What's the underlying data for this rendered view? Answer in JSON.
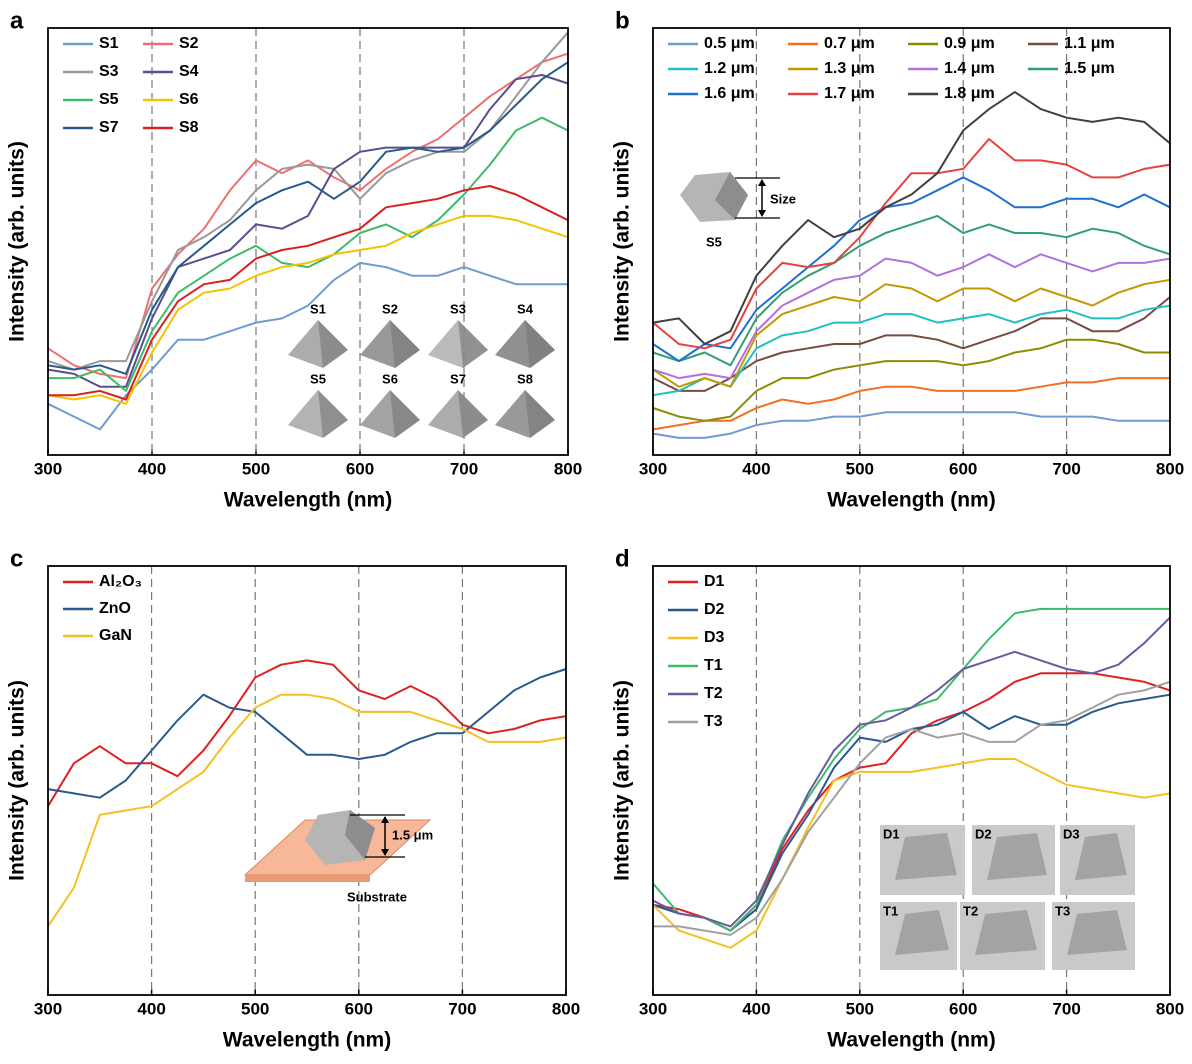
{
  "chart_data": [
    {
      "type": "line",
      "panel": "a",
      "xlabel": "Wavelength (nm)",
      "ylabel": "Intensity (arb. units)",
      "x": [
        300,
        325,
        350,
        375,
        400,
        425,
        450,
        475,
        500,
        525,
        550,
        575,
        600,
        625,
        650,
        675,
        700,
        725,
        750,
        775,
        800
      ],
      "xlim": [
        300,
        800
      ],
      "xticks": [
        300,
        400,
        500,
        600,
        700,
        800
      ],
      "ylim": [
        0,
        100
      ],
      "grid": true,
      "legend": "upper left",
      "legend_columns": 2,
      "series": [
        {
          "name": "S1",
          "color": "#6e9bd0",
          "values": [
            12,
            9,
            6,
            14,
            20,
            27,
            27,
            29,
            31,
            32,
            35,
            41,
            45,
            44,
            42,
            42,
            44,
            42,
            40,
            40,
            40
          ]
        },
        {
          "name": "S2",
          "color": "#f07070",
          "values": [
            25,
            21,
            19,
            18,
            39,
            47,
            53,
            62,
            69,
            66,
            69,
            65,
            62,
            67,
            71,
            74,
            79,
            84,
            88,
            92,
            94
          ]
        },
        {
          "name": "S3",
          "color": "#999999",
          "values": [
            22,
            20,
            22,
            22,
            36,
            48,
            51,
            55,
            62,
            67,
            68,
            67,
            60,
            66,
            69,
            71,
            71,
            76,
            84,
            92,
            99
          ]
        },
        {
          "name": "S4",
          "color": "#5a4e8c",
          "values": [
            20,
            19,
            16,
            16,
            32,
            44,
            46,
            48,
            54,
            53,
            56,
            67,
            71,
            72,
            72,
            72,
            72,
            81,
            88,
            89,
            87
          ]
        },
        {
          "name": "S5",
          "color": "#3dbb6a",
          "values": [
            18,
            18,
            20,
            15,
            29,
            38,
            42,
            46,
            49,
            45,
            44,
            47,
            52,
            54,
            51,
            55,
            61,
            68,
            76,
            79,
            76
          ]
        },
        {
          "name": "S6",
          "color": "#f5c200",
          "values": [
            14,
            13,
            14,
            12,
            24,
            34,
            38,
            39,
            42,
            44,
            45,
            47,
            48,
            49,
            52,
            54,
            56,
            56,
            55,
            53,
            51
          ]
        },
        {
          "name": "S7",
          "color": "#2a5a8c",
          "values": [
            21,
            20,
            21,
            19,
            34,
            44,
            49,
            54,
            59,
            62,
            64,
            60,
            64,
            71,
            72,
            71,
            72,
            76,
            82,
            88,
            92
          ]
        },
        {
          "name": "S8",
          "color": "#d92020",
          "values": [
            14,
            14,
            15,
            13,
            27,
            36,
            40,
            41,
            46,
            48,
            49,
            51,
            53,
            58,
            59,
            60,
            62,
            63,
            61,
            58,
            55
          ]
        }
      ],
      "inset_labels": [
        "S1",
        "S2",
        "S3",
        "S4",
        "S5",
        "S6",
        "S7",
        "S8"
      ]
    },
    {
      "type": "line",
      "panel": "b",
      "xlabel": "Wavelength (nm)",
      "ylabel": "Intensity (arb. units)",
      "x": [
        300,
        325,
        350,
        375,
        400,
        425,
        450,
        475,
        500,
        525,
        550,
        575,
        600,
        625,
        650,
        675,
        700,
        725,
        750,
        775,
        800
      ],
      "xlim": [
        300,
        800
      ],
      "xticks": [
        300,
        400,
        500,
        600,
        700,
        800
      ],
      "ylim": [
        0,
        100
      ],
      "grid": true,
      "legend": "upper left",
      "legend_columns": 4,
      "series": [
        {
          "name": "0.5 μm",
          "color": "#6e9bd0",
          "values": [
            5,
            4,
            4,
            5,
            7,
            8,
            8,
            9,
            9,
            10,
            10,
            10,
            10,
            10,
            10,
            9,
            9,
            9,
            8,
            8,
            8
          ]
        },
        {
          "name": "0.7 μm",
          "color": "#f07020",
          "values": [
            6,
            7,
            8,
            8,
            11,
            13,
            12,
            13,
            15,
            16,
            16,
            15,
            15,
            15,
            15,
            16,
            17,
            17,
            18,
            18,
            18
          ]
        },
        {
          "name": "0.9 μm",
          "color": "#8c8c00",
          "values": [
            11,
            9,
            8,
            9,
            15,
            18,
            18,
            20,
            21,
            22,
            22,
            22,
            21,
            22,
            24,
            25,
            27,
            27,
            26,
            24,
            24
          ]
        },
        {
          "name": "1.1 μm",
          "color": "#7a4a40",
          "values": [
            18,
            15,
            15,
            18,
            22,
            24,
            25,
            26,
            26,
            28,
            28,
            27,
            25,
            27,
            29,
            32,
            32,
            29,
            29,
            32,
            37
          ]
        },
        {
          "name": "1.2 μm",
          "color": "#20c0c0",
          "values": [
            14,
            15,
            18,
            16,
            25,
            28,
            29,
            31,
            31,
            33,
            33,
            31,
            32,
            33,
            31,
            33,
            34,
            32,
            32,
            34,
            35
          ]
        },
        {
          "name": "1.3 μm",
          "color": "#c09a00",
          "values": [
            20,
            16,
            18,
            16,
            28,
            33,
            35,
            37,
            36,
            40,
            39,
            36,
            39,
            39,
            36,
            39,
            37,
            35,
            38,
            40,
            41
          ]
        },
        {
          "name": "1.4 μm",
          "color": "#b070e0",
          "values": [
            20,
            18,
            19,
            18,
            29,
            35,
            38,
            41,
            42,
            46,
            45,
            42,
            44,
            47,
            44,
            47,
            45,
            43,
            45,
            45,
            46
          ]
        },
        {
          "name": "1.5 μm",
          "color": "#30a070",
          "values": [
            24,
            22,
            24,
            21,
            32,
            38,
            42,
            45,
            49,
            52,
            54,
            56,
            52,
            54,
            52,
            52,
            51,
            53,
            52,
            49,
            47
          ]
        },
        {
          "name": "1.6 μm",
          "color": "#1f6fd0",
          "values": [
            26,
            22,
            26,
            25,
            34,
            39,
            44,
            49,
            55,
            58,
            59,
            62,
            65,
            62,
            58,
            58,
            60,
            60,
            58,
            61,
            58
          ]
        },
        {
          "name": "1.7 μm",
          "color": "#e84040",
          "values": [
            31,
            26,
            25,
            27,
            39,
            45,
            44,
            45,
            51,
            59,
            66,
            66,
            67,
            74,
            69,
            69,
            68,
            65,
            65,
            67,
            68
          ]
        },
        {
          "name": "1.8 μm",
          "color": "#404040",
          "values": [
            31,
            32,
            26,
            29,
            42,
            49,
            55,
            51,
            53,
            58,
            61,
            66,
            76,
            81,
            85,
            81,
            79,
            78,
            79,
            78,
            73
          ]
        }
      ],
      "inset_labels": [
        "Size",
        "S5"
      ]
    },
    {
      "type": "line",
      "panel": "c",
      "xlabel": "Wavelength (nm)",
      "ylabel": "Intensity (arb. units)",
      "x": [
        300,
        325,
        350,
        375,
        400,
        425,
        450,
        475,
        500,
        525,
        550,
        575,
        600,
        625,
        650,
        675,
        700,
        725,
        750,
        775,
        800
      ],
      "xlim": [
        300,
        800
      ],
      "xticks": [
        300,
        400,
        500,
        600,
        700,
        800
      ],
      "ylim": [
        0,
        100
      ],
      "grid": true,
      "legend": "upper left",
      "legend_columns": 1,
      "series": [
        {
          "name": "Al₂O₃",
          "color": "#e02020",
          "values": [
            44,
            54,
            58,
            54,
            54,
            51,
            57,
            65,
            74,
            77,
            78,
            77,
            71,
            69,
            72,
            69,
            63,
            61,
            62,
            64,
            65
          ]
        },
        {
          "name": "ZnO",
          "color": "#2a5a8c",
          "values": [
            48,
            47,
            46,
            50,
            57,
            64,
            70,
            67,
            66,
            61,
            56,
            56,
            55,
            56,
            59,
            61,
            61,
            66,
            71,
            74,
            76
          ]
        },
        {
          "name": "GaN",
          "color": "#f5c020",
          "values": [
            16,
            25,
            42,
            43,
            44,
            48,
            52,
            60,
            67,
            70,
            70,
            69,
            66,
            66,
            66,
            64,
            62,
            59,
            59,
            59,
            60
          ]
        }
      ],
      "inset_labels": [
        "1.5 μm",
        "Substrate"
      ]
    },
    {
      "type": "line",
      "panel": "d",
      "xlabel": "Wavelength (nm)",
      "ylabel": "Intensity (arb. units)",
      "x": [
        300,
        325,
        350,
        375,
        400,
        425,
        450,
        475,
        500,
        525,
        550,
        575,
        600,
        625,
        650,
        675,
        700,
        725,
        750,
        775,
        800
      ],
      "xlim": [
        300,
        800
      ],
      "xticks": [
        300,
        400,
        500,
        600,
        700,
        800
      ],
      "ylim": [
        0,
        100
      ],
      "grid": true,
      "legend": "upper left",
      "legend_columns": 1,
      "series": [
        {
          "name": "D1",
          "color": "#e02020",
          "values": [
            21,
            20,
            18,
            15,
            21,
            34,
            43,
            50,
            53,
            54,
            61,
            64,
            66,
            69,
            73,
            75,
            75,
            75,
            74,
            73,
            71
          ]
        },
        {
          "name": "D2",
          "color": "#2a5a8c",
          "values": [
            21,
            19,
            18,
            15,
            20,
            33,
            42,
            53,
            60,
            59,
            62,
            63,
            66,
            62,
            65,
            63,
            63,
            66,
            68,
            69,
            70
          ]
        },
        {
          "name": "D3",
          "color": "#f5c020",
          "values": [
            21,
            15,
            13,
            11,
            15,
            27,
            39,
            50,
            52,
            52,
            52,
            53,
            54,
            55,
            55,
            52,
            49,
            48,
            47,
            46,
            47
          ]
        },
        {
          "name": "T1",
          "color": "#3dbb6a",
          "values": [
            26,
            19,
            18,
            15,
            21,
            36,
            46,
            55,
            62,
            66,
            67,
            69,
            76,
            83,
            89,
            90,
            90,
            90,
            90,
            90,
            90
          ]
        },
        {
          "name": "T2",
          "color": "#6a5aa0",
          "values": [
            22,
            19,
            18,
            16,
            22,
            35,
            47,
            57,
            63,
            64,
            67,
            71,
            76,
            78,
            80,
            78,
            76,
            75,
            77,
            82,
            88
          ]
        },
        {
          "name": "T3",
          "color": "#a0a0a0",
          "values": [
            16,
            16,
            15,
            14,
            18,
            27,
            38,
            46,
            54,
            60,
            62,
            60,
            61,
            59,
            59,
            63,
            64,
            67,
            70,
            71,
            73
          ]
        }
      ],
      "inset_labels": [
        "D1",
        "D2",
        "D3",
        "T1",
        "T2",
        "T3"
      ]
    }
  ]
}
